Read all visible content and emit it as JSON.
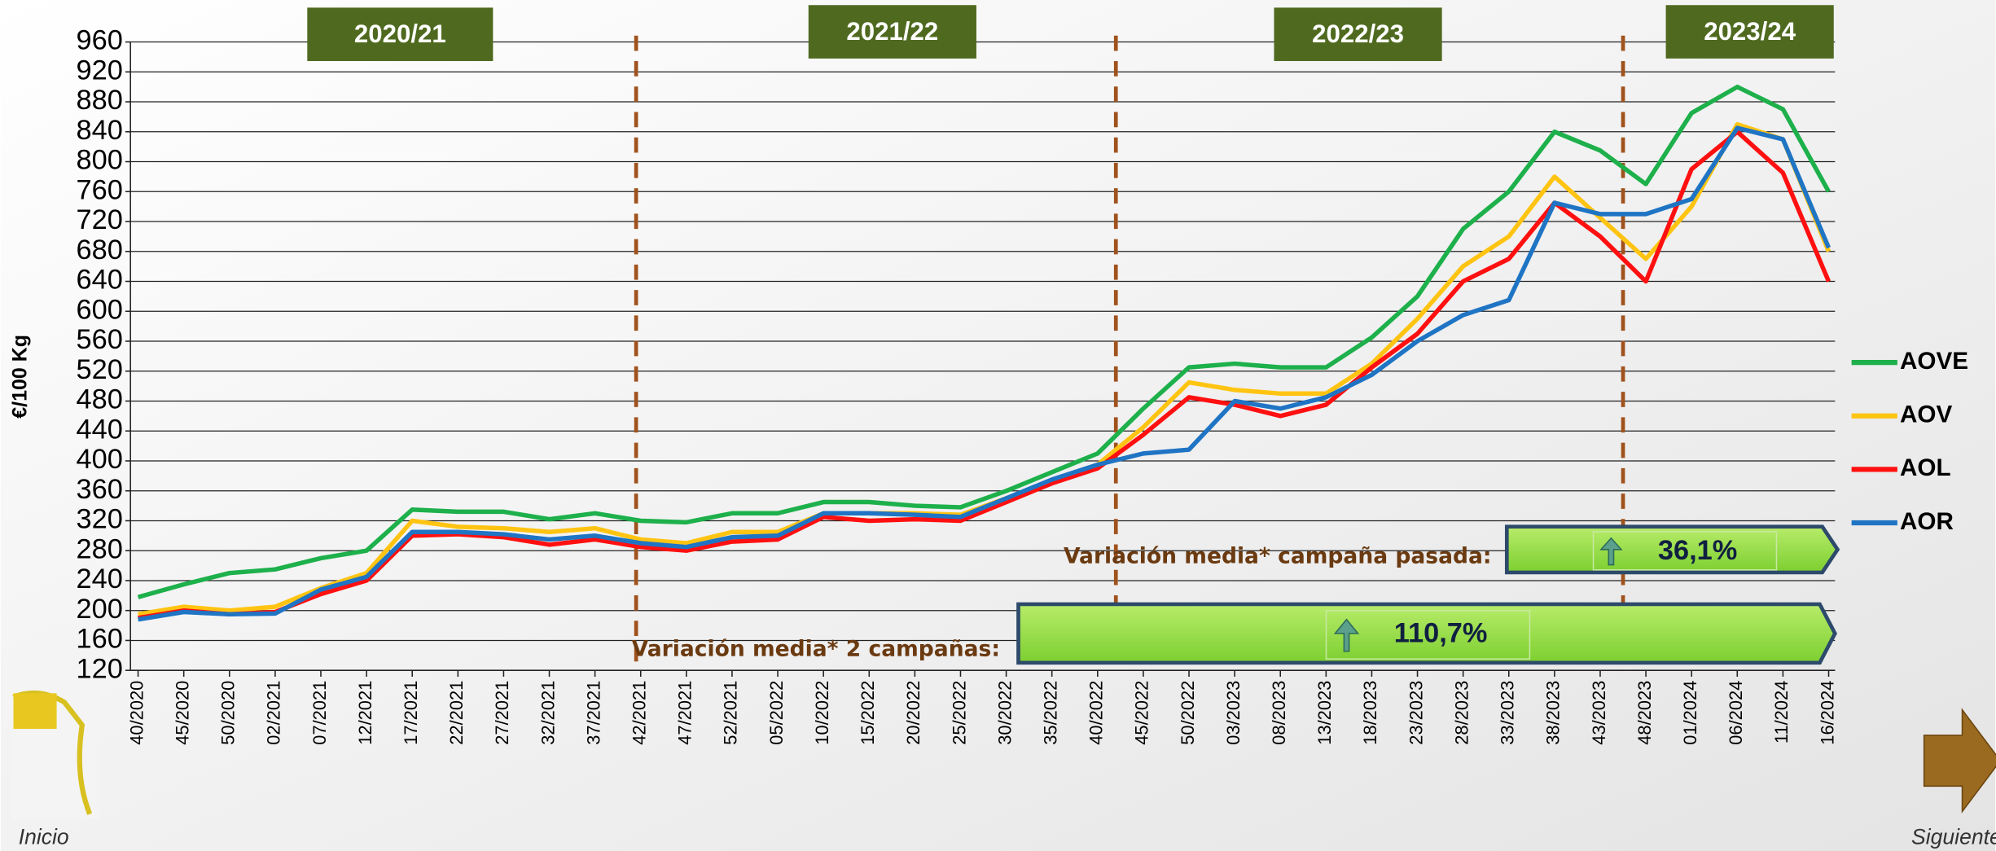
{
  "chart_data": {
    "type": "line",
    "y_label": "€/100 Kg",
    "seasons": [
      "2020/21",
      "2021/22",
      "2022/23",
      "2023/24"
    ],
    "categories": [
      "40/2020",
      "45/2020",
      "50/2020",
      "02/2021",
      "07/2021",
      "12/2021",
      "17/2021",
      "22/2021",
      "27/2021",
      "32/2021",
      "37/2021",
      "42/2021",
      "47/2021",
      "52/2021",
      "05/2022",
      "10/2022",
      "15/2022",
      "20/2022",
      "25/2022",
      "30/2022",
      "35/2022",
      "40/2022",
      "45/2022",
      "50/2022",
      "03/2023",
      "08/2023",
      "13/2023",
      "18/2023",
      "23/2023",
      "28/2023",
      "33/2023",
      "38/2023",
      "43/2023",
      "48/2023",
      "01/2024",
      "06/2024",
      "11/2024",
      "16/2024"
    ],
    "series": [
      {
        "name": "AOVE",
        "color": "#1db04b",
        "values": [
          218,
          235,
          250,
          255,
          270,
          280,
          335,
          332,
          332,
          322,
          330,
          320,
          318,
          330,
          330,
          345,
          345,
          340,
          338,
          360,
          385,
          410,
          470,
          525,
          530,
          525,
          525,
          565,
          620,
          710,
          760,
          840,
          815,
          770,
          865,
          900,
          870,
          760
        ]
      },
      {
        "name": "AOV",
        "color": "#ffc412",
        "values": [
          195,
          205,
          200,
          205,
          230,
          250,
          320,
          312,
          310,
          305,
          310,
          295,
          290,
          305,
          305,
          330,
          330,
          330,
          328,
          350,
          372,
          395,
          445,
          505,
          495,
          490,
          490,
          530,
          590,
          660,
          700,
          780,
          725,
          670,
          740,
          850,
          830,
          680
        ]
      },
      {
        "name": "AOL",
        "color": "#ff1010",
        "values": [
          190,
          200,
          195,
          198,
          222,
          240,
          300,
          302,
          298,
          288,
          295,
          285,
          280,
          292,
          295,
          325,
          320,
          322,
          320,
          345,
          370,
          390,
          435,
          485,
          475,
          460,
          475,
          525,
          570,
          640,
          670,
          745,
          700,
          640,
          790,
          840,
          785,
          640
        ]
      },
      {
        "name": "AOR",
        "color": "#1f74c4",
        "values": [
          188,
          198,
          195,
          196,
          228,
          245,
          305,
          305,
          302,
          295,
          300,
          290,
          285,
          298,
          300,
          330,
          330,
          328,
          325,
          350,
          375,
          395,
          410,
          415,
          480,
          470,
          485,
          515,
          560,
          595,
          615,
          745,
          730,
          730,
          750,
          845,
          830,
          685
        ]
      }
    ],
    "ylim": [
      120,
      960
    ],
    "yticks": [
      120,
      160,
      200,
      240,
      280,
      320,
      360,
      400,
      440,
      480,
      520,
      560,
      600,
      640,
      680,
      720,
      760,
      800,
      840,
      880,
      920,
      960
    ],
    "grid": true,
    "legend": "right",
    "annotations": {
      "last_season_label": "Variación media* campaña pasada:",
      "last_season_value": "36,1%",
      "two_seasons_label": "Variación media* 2 campañas:",
      "two_seasons_value": "110,7%"
    },
    "nav": {
      "prev": "Inicio",
      "next": "Siguiente"
    }
  }
}
